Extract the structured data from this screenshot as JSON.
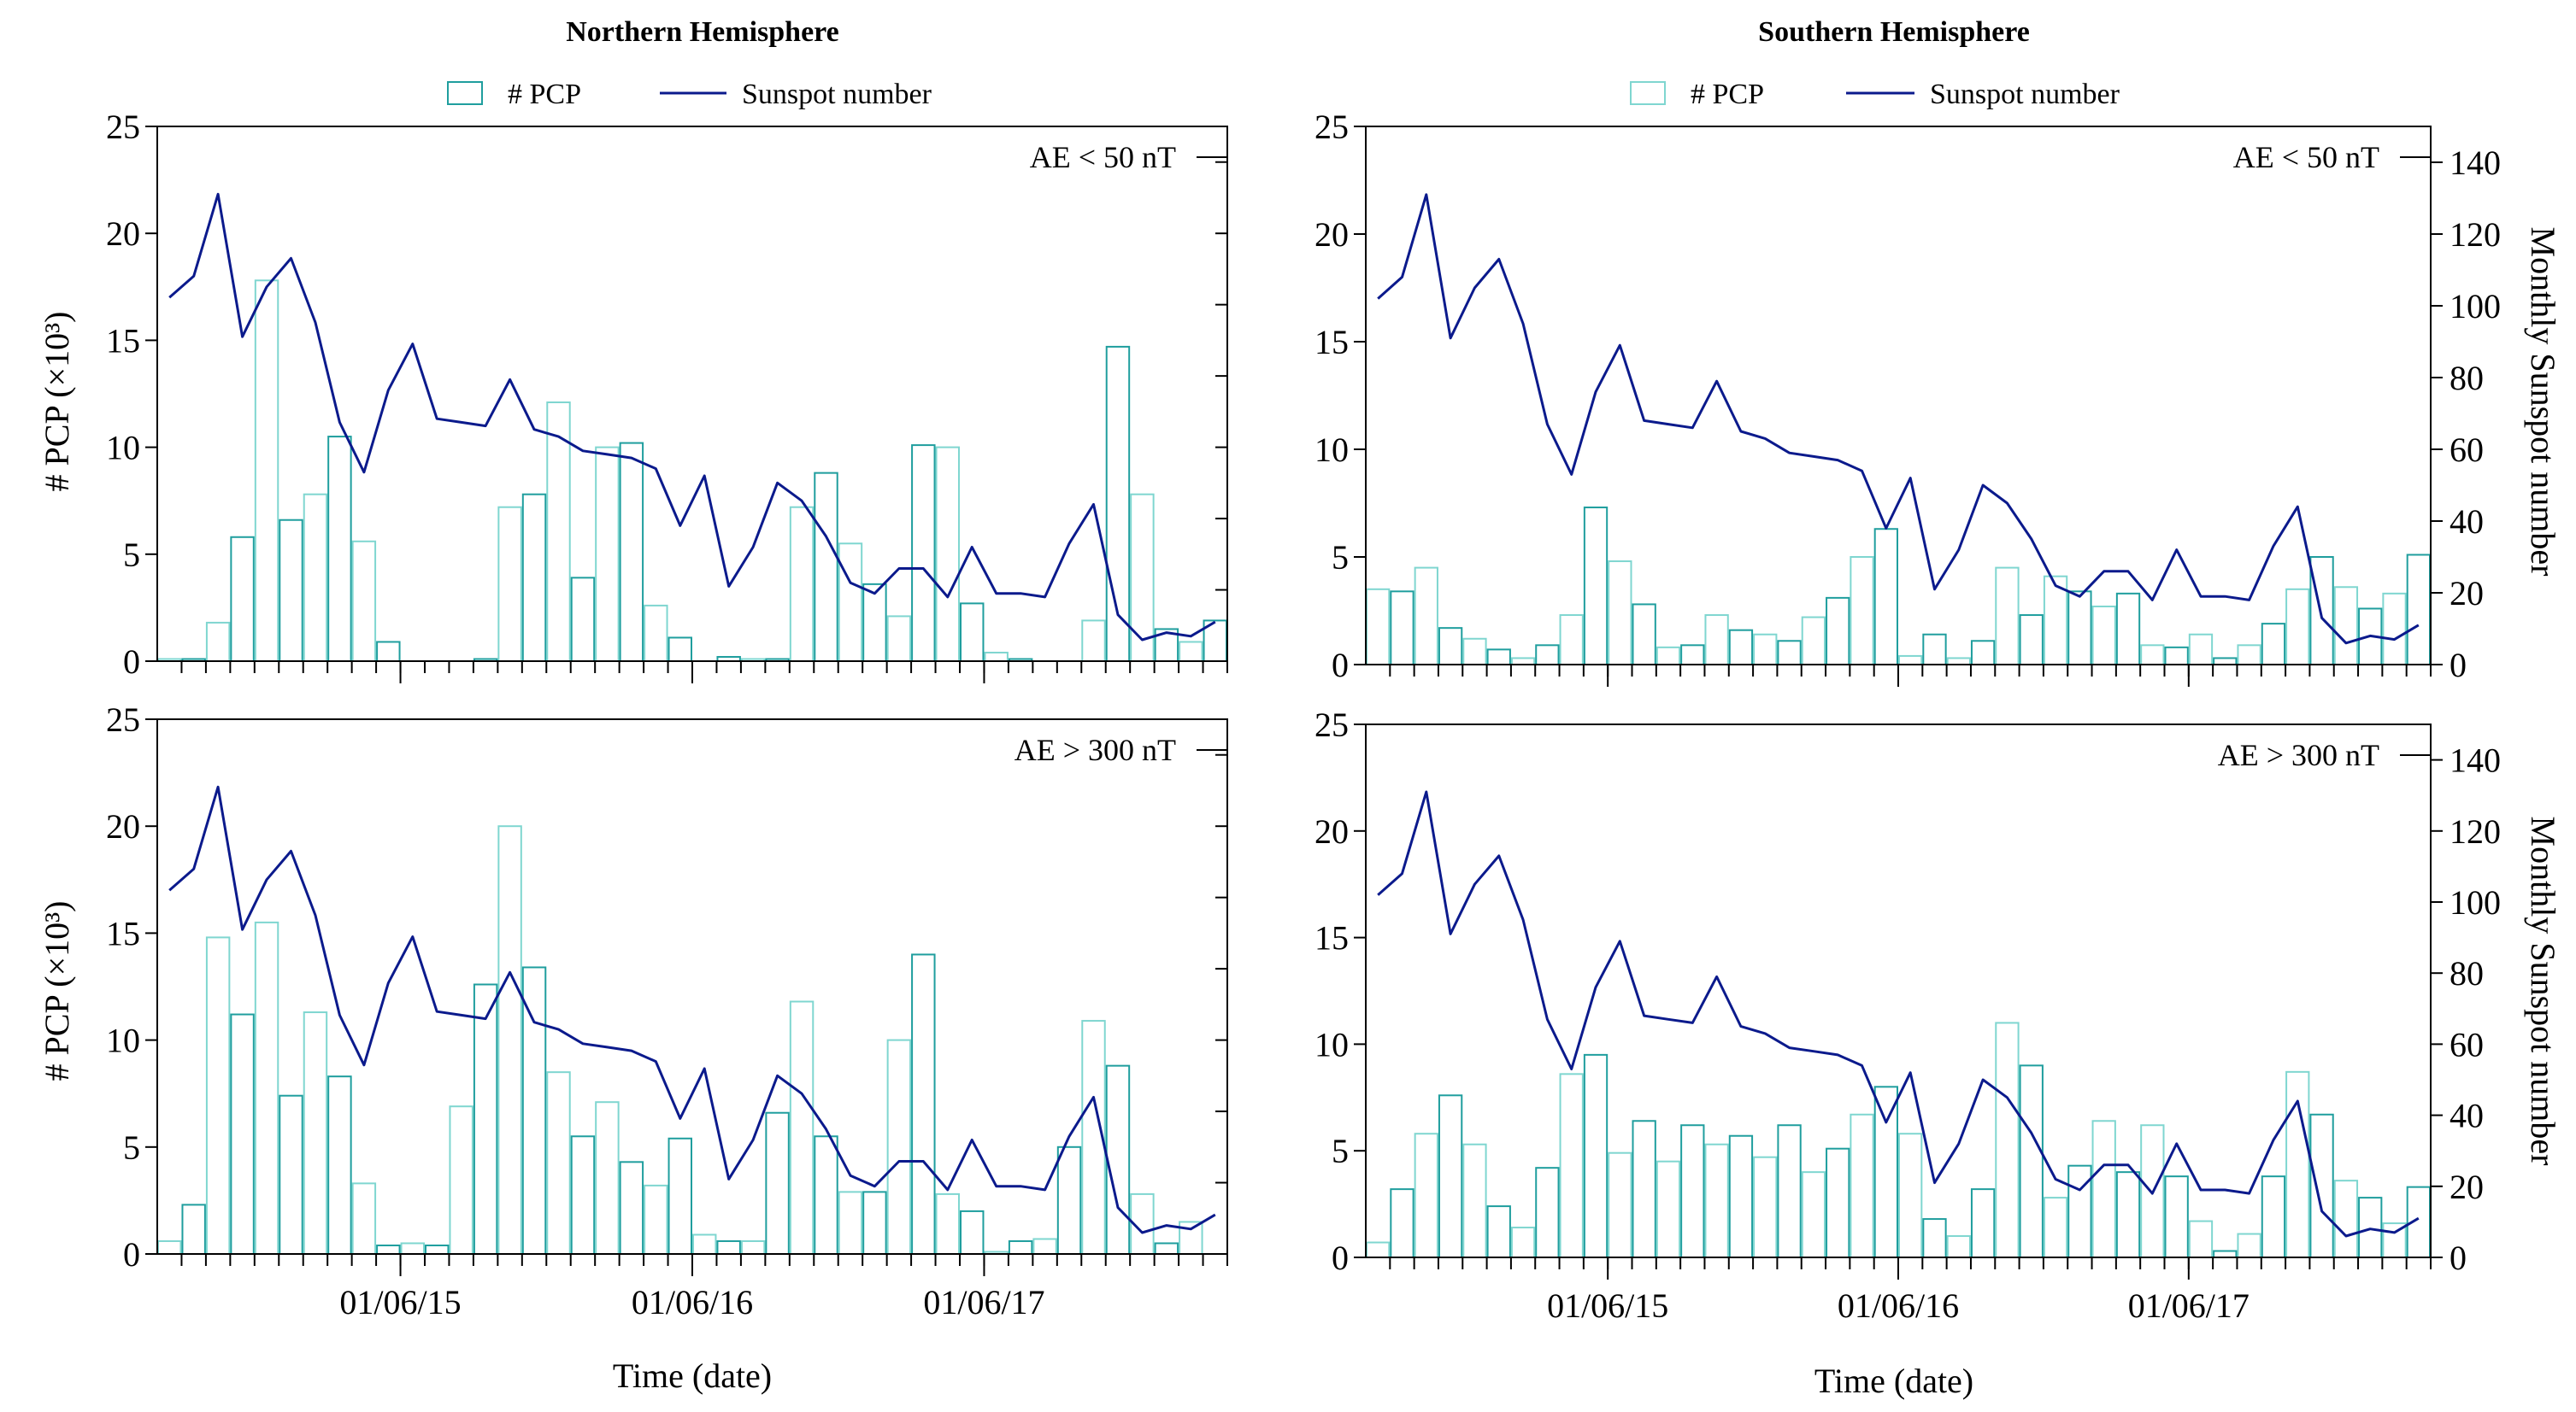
{
  "colors": {
    "bar_light": "#7fd6d0",
    "bar_dark": "#1f9e9e",
    "line": "#0b1a8c",
    "axis": "#000000"
  },
  "x_axis": {
    "label": "Time (date)",
    "tick_labels": [
      "01/06/15",
      "01/06/16",
      "01/06/17"
    ],
    "tick_label_months": [
      10,
      22,
      34
    ],
    "n_months": 44
  },
  "columns": {
    "left_title": "Northern Hemisphere",
    "right_title": "Southern Hemisphere"
  },
  "legend": {
    "bar_label": "# PCP",
    "line_label": "Sunspot number"
  },
  "y_axis": {
    "left_label": "# PCP  (×10³)",
    "right_label": "Monthly Sunspot number",
    "left_ticks": [
      "0",
      "5",
      "10",
      "15",
      "20",
      "25"
    ],
    "right_ticks": [
      "0",
      "20",
      "40",
      "60",
      "80",
      "100",
      "120",
      "140"
    ]
  },
  "chart_data": [
    {
      "type": "bar",
      "panel": "north-low",
      "title": "Northern Hemisphere",
      "condition": "AE < 50 nT",
      "xlabel": "Time (date)",
      "ylabel": "# PCP (×10^3)",
      "ylim": [
        0,
        25
      ],
      "series": [
        {
          "name": "# PCP",
          "values": [
            0.1,
            0.1,
            1.8,
            5.8,
            17.8,
            6.6,
            7.8,
            10.5,
            5.6,
            0.9,
            0,
            0,
            0,
            0.1,
            7.2,
            7.8,
            12.1,
            3.9,
            10.0,
            10.2,
            2.6,
            1.1,
            0,
            0.2,
            0.1,
            0.1,
            7.2,
            8.8,
            5.5,
            3.6,
            2.1,
            10.1,
            10.0,
            2.7,
            0.4,
            0.1,
            0,
            0,
            1.9,
            14.7,
            7.8,
            1.5,
            0.9,
            1.9
          ]
        },
        {
          "name": "Sunspot number",
          "axis": "right",
          "ylim": [
            0,
            150
          ],
          "values": [
            102,
            108,
            131,
            91,
            105,
            113,
            95,
            67,
            53,
            76,
            89,
            68,
            67,
            66,
            79,
            65,
            63,
            59,
            58,
            57,
            54,
            38,
            52,
            21,
            32,
            50,
            45,
            35,
            22,
            19,
            26,
            26,
            18,
            32,
            19,
            19,
            18,
            33,
            44,
            13,
            6,
            8,
            7,
            11
          ]
        }
      ]
    },
    {
      "type": "bar",
      "panel": "south-low",
      "title": "Southern Hemisphere",
      "condition": "AE < 50 nT",
      "xlabel": "Time (date)",
      "ylabel": "# PCP (×10^3)",
      "ylim": [
        0,
        25
      ],
      "series": [
        {
          "name": "# PCP",
          "values": [
            3.5,
            3.4,
            4.5,
            1.7,
            1.2,
            0.7,
            0.3,
            0.9,
            2.3,
            7.3,
            4.8,
            2.8,
            0.8,
            0.9,
            2.3,
            1.6,
            1.4,
            1.1,
            2.2,
            3.1,
            5.0,
            6.3,
            0.4,
            1.4,
            0.3,
            1.1,
            4.5,
            2.3,
            4.1,
            3.4,
            2.7,
            3.3,
            0.9,
            0.8,
            1.4,
            0.3,
            0.9,
            1.9,
            3.5,
            5.0,
            3.6,
            2.6,
            3.3,
            5.1
          ]
        },
        {
          "name": "Sunspot number",
          "axis": "right",
          "ylim": [
            0,
            150
          ],
          "values": [
            102,
            108,
            131,
            91,
            105,
            113,
            95,
            67,
            53,
            76,
            89,
            68,
            67,
            66,
            79,
            65,
            63,
            59,
            58,
            57,
            54,
            38,
            52,
            21,
            32,
            50,
            45,
            35,
            22,
            19,
            26,
            26,
            18,
            32,
            19,
            19,
            18,
            33,
            44,
            13,
            6,
            8,
            7,
            11
          ]
        }
      ]
    },
    {
      "type": "bar",
      "panel": "north-high",
      "title": "Northern Hemisphere",
      "condition": "AE > 300 nT",
      "xlabel": "Time (date)",
      "ylabel": "# PCP (×10^3)",
      "ylim": [
        0,
        25
      ],
      "series": [
        {
          "name": "# PCP",
          "values": [
            0.6,
            2.3,
            14.8,
            11.2,
            15.5,
            7.4,
            11.3,
            8.3,
            3.3,
            0.4,
            0.5,
            0.4,
            6.9,
            12.6,
            20.0,
            13.4,
            8.5,
            5.5,
            7.1,
            4.3,
            3.2,
            5.4,
            0.9,
            0.6,
            0.6,
            6.6,
            11.8,
            5.5,
            2.9,
            2.9,
            10.0,
            14.0,
            2.8,
            2.0,
            0.1,
            0.6,
            0.7,
            5.0,
            10.9,
            8.8,
            2.8,
            0.5,
            1.5,
            0
          ]
        },
        {
          "name": "Sunspot number",
          "axis": "right",
          "ylim": [
            0,
            150
          ],
          "values": [
            102,
            108,
            131,
            91,
            105,
            113,
            95,
            67,
            53,
            76,
            89,
            68,
            67,
            66,
            79,
            65,
            63,
            59,
            58,
            57,
            54,
            38,
            52,
            21,
            32,
            50,
            45,
            35,
            22,
            19,
            26,
            26,
            18,
            32,
            19,
            19,
            18,
            33,
            44,
            13,
            6,
            8,
            7,
            11
          ]
        }
      ]
    },
    {
      "type": "bar",
      "panel": "south-high",
      "title": "Southern Hemisphere",
      "condition": "AE > 300 nT",
      "xlabel": "Time (date)",
      "ylabel": "# PCP (×10^3)",
      "ylim": [
        0,
        25
      ],
      "series": [
        {
          "name": "# PCP",
          "values": [
            0.7,
            3.2,
            5.8,
            7.6,
            5.3,
            2.4,
            1.4,
            4.2,
            8.6,
            9.5,
            4.9,
            6.4,
            4.5,
            6.2,
            5.3,
            5.7,
            4.7,
            6.2,
            4.0,
            5.1,
            6.7,
            8.0,
            5.8,
            1.8,
            1.0,
            3.2,
            11.0,
            9.0,
            2.8,
            4.3,
            6.4,
            4.0,
            6.2,
            3.8,
            1.7,
            0.3,
            1.1,
            3.8,
            8.7,
            6.7,
            3.6,
            2.8,
            1.6,
            3.3
          ]
        },
        {
          "name": "Sunspot number",
          "axis": "right",
          "ylim": [
            0,
            150
          ],
          "values": [
            102,
            108,
            131,
            91,
            105,
            113,
            95,
            67,
            53,
            76,
            89,
            68,
            67,
            66,
            79,
            65,
            63,
            59,
            58,
            57,
            54,
            38,
            52,
            21,
            32,
            50,
            45,
            35,
            22,
            19,
            26,
            26,
            18,
            32,
            19,
            19,
            18,
            33,
            44,
            13,
            6,
            8,
            7,
            11
          ]
        }
      ]
    }
  ]
}
